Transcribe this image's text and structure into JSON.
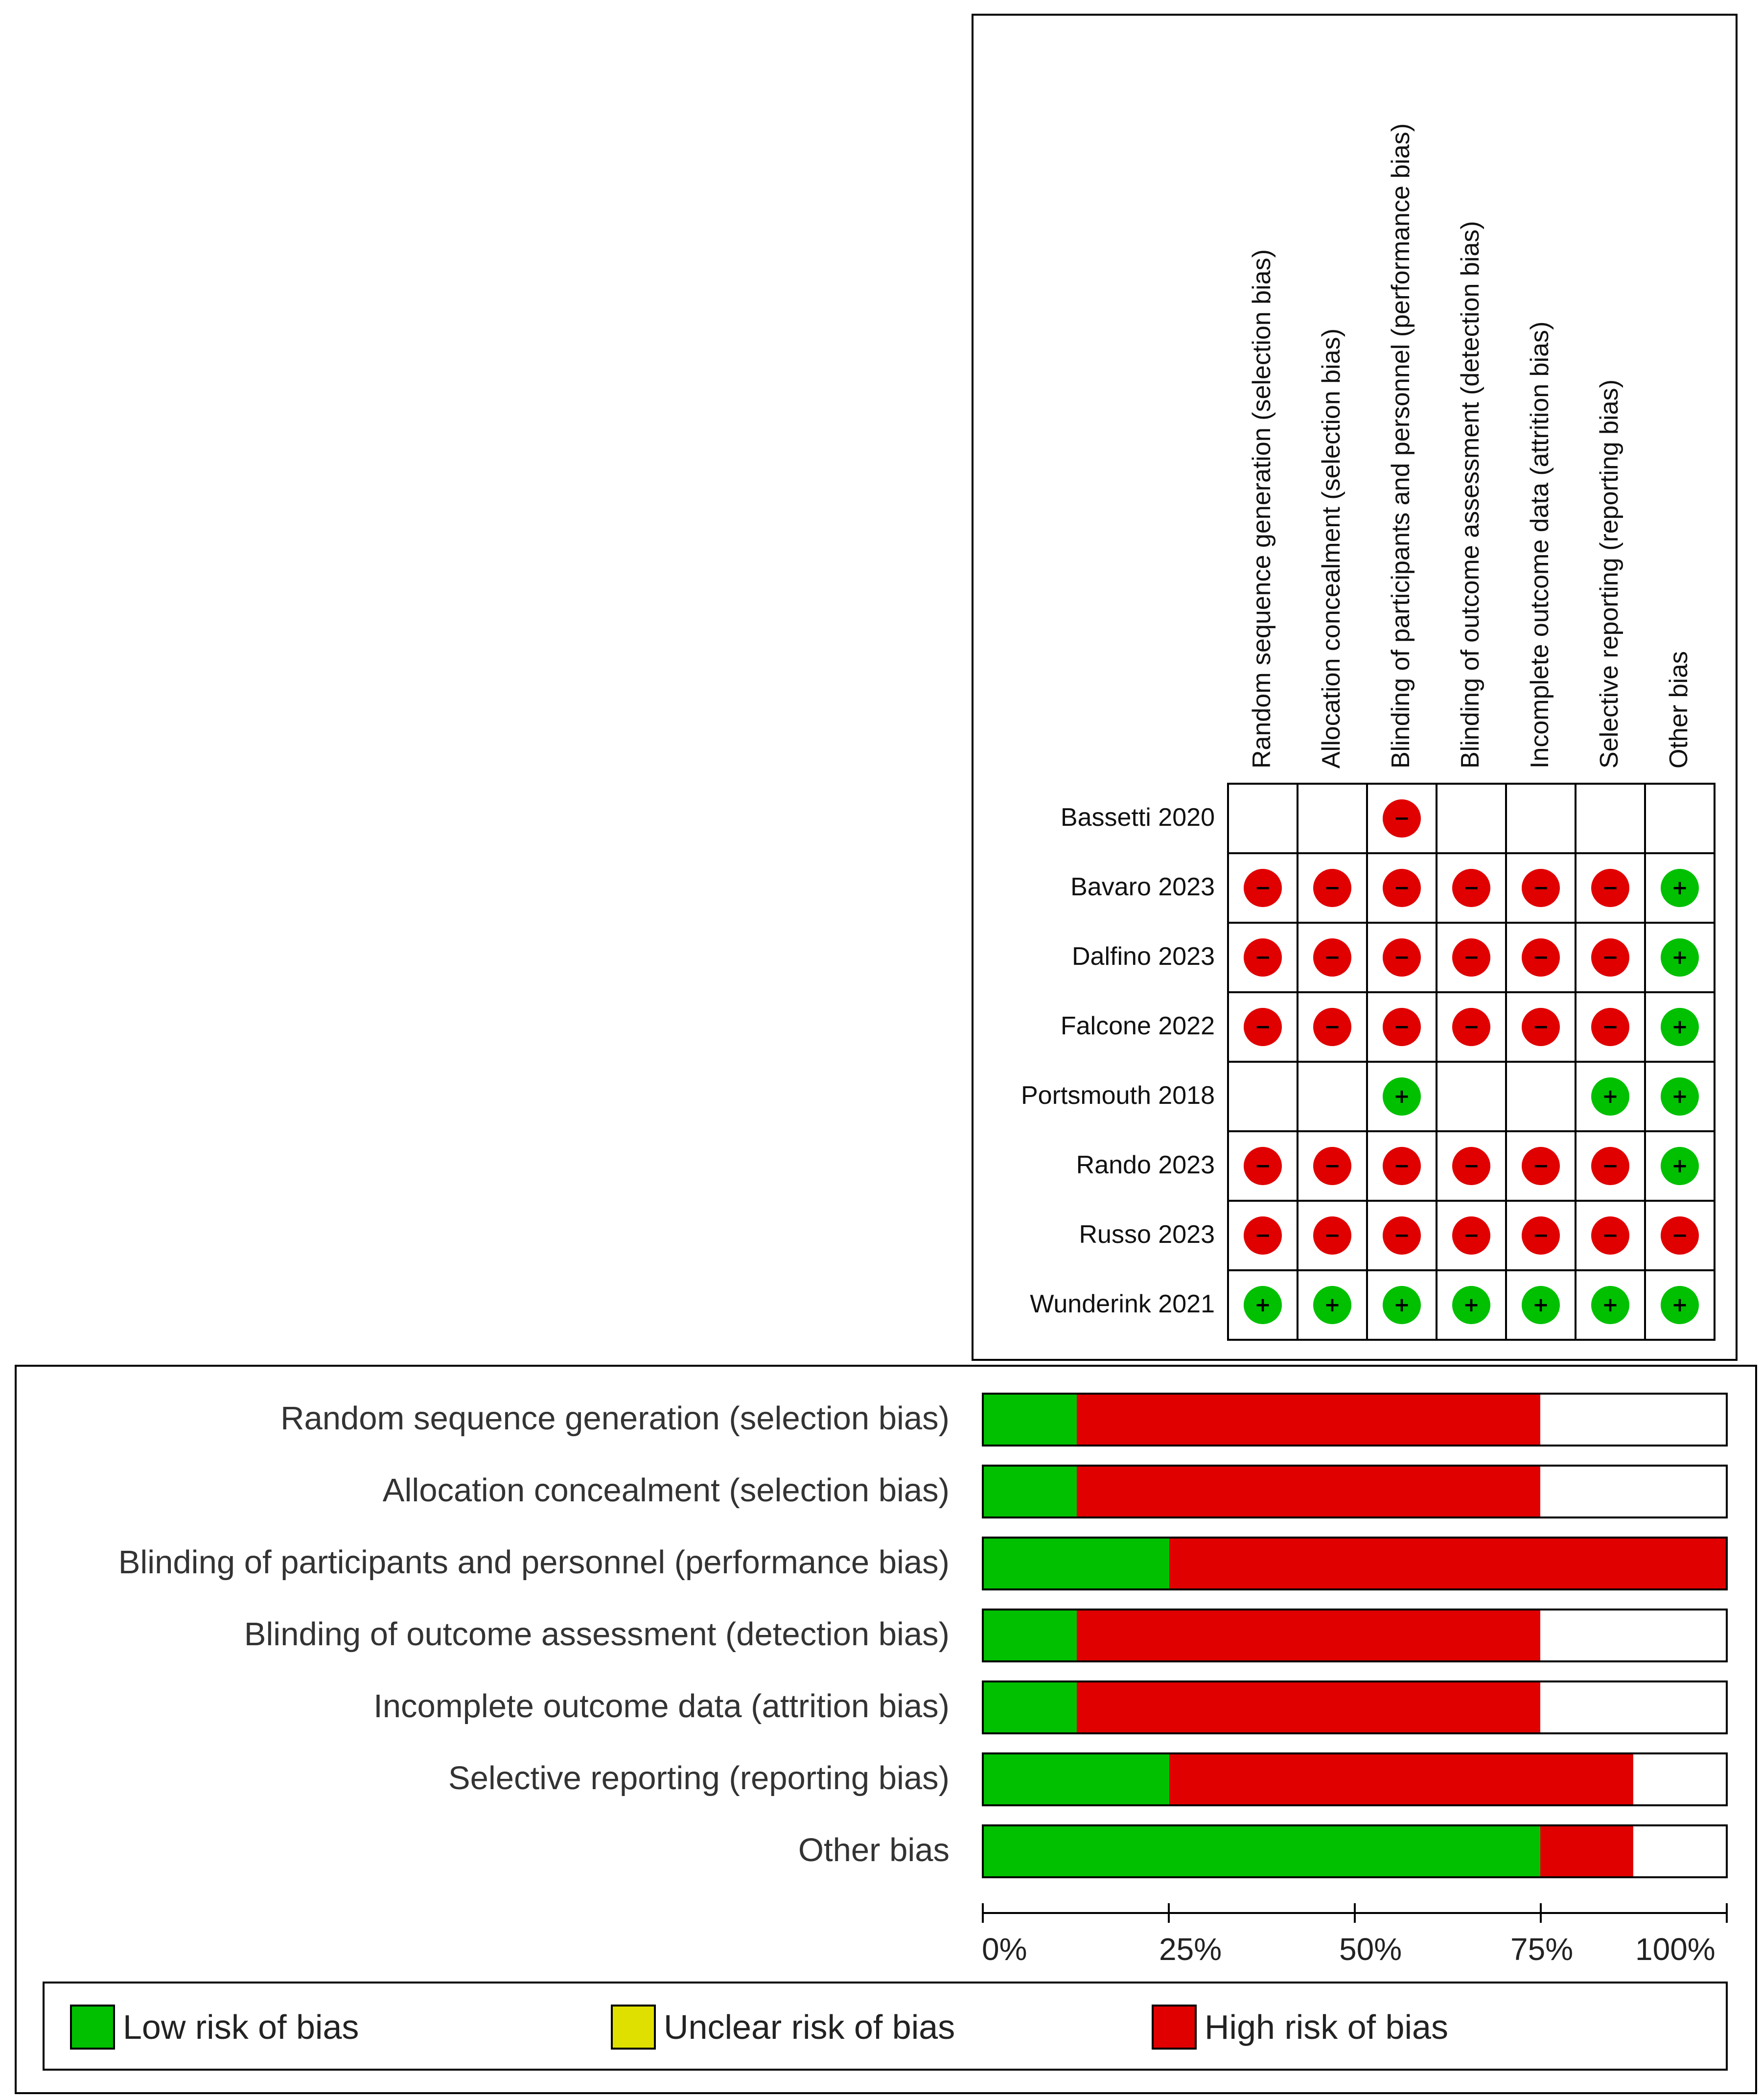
{
  "colors": {
    "low": "#00c000",
    "unclear": "#e0e000",
    "high": "#e00000"
  },
  "summary": {
    "domains": [
      "Random sequence generation (selection bias)",
      "Allocation concealment (selection bias)",
      "Blinding of participants and personnel (performance bias)",
      "Blinding of outcome assessment (detection bias)",
      "Incomplete outcome data (attrition bias)",
      "Selective reporting (reporting bias)",
      "Other bias"
    ],
    "studies": [
      {
        "name": "Bassetti 2020",
        "ratings": [
          "",
          "",
          "high",
          "",
          "",
          "",
          ""
        ]
      },
      {
        "name": "Bavaro 2023",
        "ratings": [
          "high",
          "high",
          "high",
          "high",
          "high",
          "high",
          "low"
        ]
      },
      {
        "name": "Dalfino 2023",
        "ratings": [
          "high",
          "high",
          "high",
          "high",
          "high",
          "high",
          "low"
        ]
      },
      {
        "name": "Falcone 2022",
        "ratings": [
          "high",
          "high",
          "high",
          "high",
          "high",
          "high",
          "low"
        ]
      },
      {
        "name": "Portsmouth 2018",
        "ratings": [
          "",
          "",
          "low",
          "",
          "",
          "low",
          "low"
        ]
      },
      {
        "name": "Rando 2023",
        "ratings": [
          "high",
          "high",
          "high",
          "high",
          "high",
          "high",
          "low"
        ]
      },
      {
        "name": "Russo 2023",
        "ratings": [
          "high",
          "high",
          "high",
          "high",
          "high",
          "high",
          "high"
        ]
      },
      {
        "name": "Wunderink 2021",
        "ratings": [
          "low",
          "low",
          "low",
          "low",
          "low",
          "low",
          "low"
        ]
      }
    ],
    "symbols": {
      "low": "+",
      "high": "−"
    }
  },
  "chart_data": {
    "type": "bar",
    "orientation": "horizontal-stacked",
    "categories": [
      "Random sequence generation (selection bias)",
      "Allocation concealment (selection bias)",
      "Blinding of participants and personnel (performance bias)",
      "Blinding of outcome assessment (detection bias)",
      "Incomplete outcome data (attrition bias)",
      "Selective reporting (reporting bias)",
      "Other bias"
    ],
    "series": [
      {
        "name": "Low risk of bias",
        "color": "#00c000",
        "values": [
          12.5,
          12.5,
          25,
          12.5,
          12.5,
          25,
          75
        ]
      },
      {
        "name": "Unclear risk of bias",
        "color": "#e0e000",
        "values": [
          0,
          0,
          0,
          0,
          0,
          0,
          0
        ]
      },
      {
        "name": "High risk of bias",
        "color": "#e00000",
        "values": [
          62.5,
          62.5,
          75,
          62.5,
          62.5,
          62.5,
          12.5
        ]
      }
    ],
    "xlim": [
      0,
      100
    ],
    "xticks": [
      "0%",
      "25%",
      "50%",
      "75%",
      "100%"
    ],
    "legend": [
      "Low risk of bias",
      "Unclear risk of bias",
      "High risk of bias"
    ]
  }
}
